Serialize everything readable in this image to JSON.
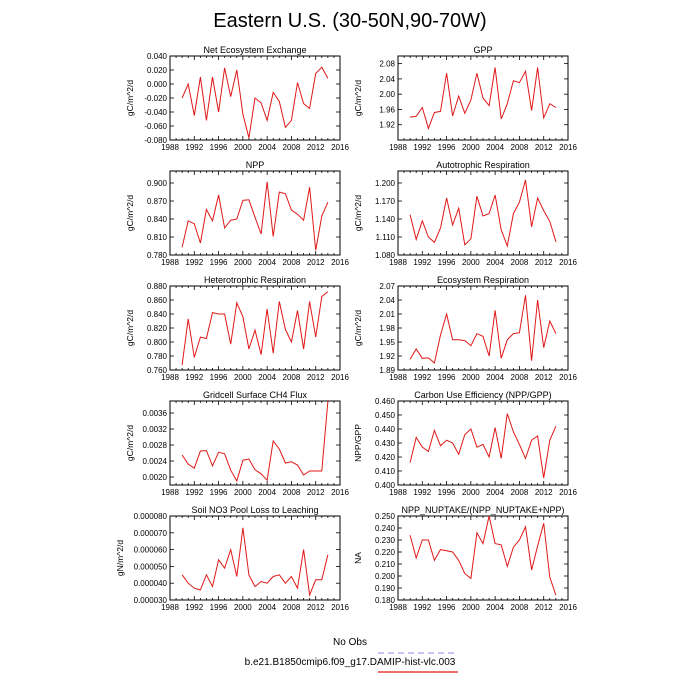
{
  "title": "Eastern U.S. (30-50N,90-70W)",
  "legend": {
    "entries": [
      {
        "label": "No Obs",
        "color": "#8f8fe8",
        "dashed": true
      },
      {
        "label": "b.e21.B1850cmip6.f09_g17.DAMIP-hist-vlc.003",
        "color": "#e01818",
        "dashed": false
      }
    ]
  },
  "chart_data": [
    {
      "type": "line",
      "title": "Net Ecosystem Exchange",
      "ylabel": "gC/m^2/d",
      "xlim": [
        1988,
        2016
      ],
      "ylim": [
        -0.08,
        0.04
      ],
      "xticks": [
        1988,
        1992,
        1996,
        2000,
        2004,
        2008,
        2012,
        2016
      ],
      "yticks": [
        -0.08,
        -0.06,
        -0.04,
        -0.02,
        0.0,
        0.02,
        0.04
      ],
      "ytick_labels": [
        "-0.080",
        "-0.060",
        "-0.040",
        "-0.020",
        "0.000",
        "0.020",
        "0.040"
      ],
      "series": [
        {
          "color": "#e01818",
          "x": [
            1990,
            1991,
            1992,
            1993,
            1994,
            1995,
            1996,
            1997,
            1998,
            1999,
            2000,
            2001,
            2002,
            2003,
            2004,
            2005,
            2006,
            2007,
            2008,
            2009,
            2010,
            2011,
            2012,
            2013,
            2014
          ],
          "y": [
            -0.02,
            0.0,
            -0.045,
            0.01,
            -0.052,
            0.01,
            -0.04,
            0.023,
            -0.018,
            0.02,
            -0.043,
            -0.077,
            -0.02,
            -0.027,
            -0.052,
            -0.012,
            -0.025,
            -0.062,
            -0.052,
            0.002,
            -0.028,
            -0.035,
            0.015,
            0.024,
            0.008
          ]
        }
      ]
    },
    {
      "type": "line",
      "title": "GPP",
      "ylabel": "gC/m^2/d",
      "xlim": [
        1988,
        2016
      ],
      "ylim": [
        1.88,
        2.1
      ],
      "xticks": [
        1988,
        1992,
        1996,
        2000,
        2004,
        2008,
        2012,
        2016
      ],
      "yticks": [
        1.92,
        1.96,
        2.0,
        2.04,
        2.08
      ],
      "ytick_labels": [
        "1.92",
        "1.96",
        "2.00",
        "2.04",
        "2.08"
      ],
      "series": [
        {
          "color": "#e01818",
          "x": [
            1990,
            1991,
            1992,
            1993,
            1994,
            1995,
            1996,
            1997,
            1998,
            1999,
            2000,
            2001,
            2002,
            2003,
            2004,
            2005,
            2006,
            2007,
            2008,
            2009,
            2010,
            2011,
            2012,
            2013,
            2014
          ],
          "y": [
            1.94,
            1.942,
            1.965,
            1.91,
            1.952,
            1.955,
            2.055,
            1.943,
            1.995,
            1.95,
            1.985,
            2.055,
            1.99,
            1.97,
            2.07,
            1.935,
            1.975,
            2.035,
            2.03,
            2.06,
            1.957,
            2.07,
            1.938,
            1.975,
            1.965
          ]
        }
      ]
    },
    {
      "type": "line",
      "title": "NPP",
      "ylabel": "gC/m^2/d",
      "xlim": [
        1988,
        2016
      ],
      "ylim": [
        0.78,
        0.92
      ],
      "xticks": [
        1988,
        1992,
        1996,
        2000,
        2004,
        2008,
        2012,
        2016
      ],
      "yticks": [
        0.78,
        0.81,
        0.84,
        0.87,
        0.9
      ],
      "ytick_labels": [
        "0.780",
        "0.810",
        "0.840",
        "0.870",
        "0.900"
      ],
      "series": [
        {
          "color": "#e01818",
          "x": [
            1990,
            1991,
            1992,
            1993,
            1994,
            1995,
            1996,
            1997,
            1998,
            1999,
            2000,
            2001,
            2002,
            2003,
            2004,
            2005,
            2006,
            2007,
            2008,
            2009,
            2010,
            2011,
            2012,
            2013,
            2014
          ],
          "y": [
            0.793,
            0.837,
            0.832,
            0.8,
            0.856,
            0.837,
            0.88,
            0.825,
            0.838,
            0.84,
            0.871,
            0.872,
            0.843,
            0.815,
            0.902,
            0.811,
            0.885,
            0.882,
            0.855,
            0.848,
            0.838,
            0.893,
            0.788,
            0.845,
            0.868
          ]
        }
      ]
    },
    {
      "type": "line",
      "title": "Autotrophic Respiration",
      "ylabel": "gC/m^2/d",
      "xlim": [
        1988,
        2016
      ],
      "ylim": [
        1.08,
        1.22
      ],
      "xticks": [
        1988,
        1992,
        1996,
        2000,
        2004,
        2008,
        2012,
        2016
      ],
      "yticks": [
        1.08,
        1.11,
        1.14,
        1.17,
        1.2
      ],
      "ytick_labels": [
        "1.080",
        "1.110",
        "1.140",
        "1.170",
        "1.200"
      ],
      "series": [
        {
          "color": "#e01818",
          "x": [
            1990,
            1991,
            1992,
            1993,
            1994,
            1995,
            1996,
            1997,
            1998,
            1999,
            2000,
            2001,
            2002,
            2003,
            2004,
            2005,
            2006,
            2007,
            2008,
            2009,
            2010,
            2011,
            2012,
            2013,
            2014
          ],
          "y": [
            1.147,
            1.106,
            1.137,
            1.11,
            1.101,
            1.125,
            1.175,
            1.13,
            1.158,
            1.097,
            1.107,
            1.178,
            1.145,
            1.149,
            1.18,
            1.122,
            1.095,
            1.149,
            1.168,
            1.205,
            1.127,
            1.175,
            1.154,
            1.136,
            1.102
          ]
        }
      ]
    },
    {
      "type": "line",
      "title": "Heterotrophic Respiration",
      "ylabel": "gC/m^2/d",
      "xlim": [
        1988,
        2016
      ],
      "ylim": [
        0.76,
        0.88
      ],
      "xticks": [
        1988,
        1992,
        1996,
        2000,
        2004,
        2008,
        2012,
        2016
      ],
      "yticks": [
        0.76,
        0.78,
        0.8,
        0.82,
        0.84,
        0.86,
        0.88
      ],
      "ytick_labels": [
        "0.760",
        "0.780",
        "0.800",
        "0.820",
        "0.840",
        "0.860",
        "0.880"
      ],
      "series": [
        {
          "color": "#e01818",
          "x": [
            1990,
            1991,
            1992,
            1993,
            1994,
            1995,
            1996,
            1997,
            1998,
            1999,
            2000,
            2001,
            2002,
            2003,
            2004,
            2005,
            2006,
            2007,
            2008,
            2009,
            2010,
            2011,
            2012,
            2013,
            2014
          ],
          "y": [
            0.767,
            0.833,
            0.778,
            0.807,
            0.805,
            0.842,
            0.84,
            0.84,
            0.797,
            0.856,
            0.836,
            0.79,
            0.817,
            0.782,
            0.847,
            0.784,
            0.858,
            0.818,
            0.8,
            0.845,
            0.79,
            0.858,
            0.807,
            0.865,
            0.872
          ]
        }
      ]
    },
    {
      "type": "line",
      "title": "Ecosystem Respiration",
      "ylabel": "gC/m^2/d",
      "xlim": [
        1988,
        2016
      ],
      "ylim": [
        1.89,
        2.07
      ],
      "xticks": [
        1988,
        1992,
        1996,
        2000,
        2004,
        2008,
        2012,
        2016
      ],
      "yticks": [
        1.89,
        1.92,
        1.95,
        1.98,
        2.01,
        2.04,
        2.07
      ],
      "ytick_labels": [
        "1.89",
        "1.92",
        "1.95",
        "1.98",
        "2.01",
        "2.04",
        "2.07"
      ],
      "series": [
        {
          "color": "#e01818",
          "x": [
            1990,
            1991,
            1992,
            1993,
            1994,
            1995,
            1996,
            1997,
            1998,
            1999,
            2000,
            2001,
            2002,
            2003,
            2004,
            2005,
            2006,
            2007,
            2008,
            2009,
            2010,
            2011,
            2012,
            2013,
            2014
          ],
          "y": [
            1.913,
            1.935,
            1.915,
            1.916,
            1.905,
            1.965,
            2.01,
            1.955,
            1.955,
            1.953,
            1.942,
            1.968,
            1.962,
            1.92,
            2.018,
            1.915,
            1.955,
            1.968,
            1.97,
            2.05,
            1.91,
            2.04,
            1.938,
            1.995,
            1.968
          ]
        }
      ]
    },
    {
      "type": "line",
      "title": "Gridcell Surface CH4 Flux",
      "ylabel": "gC/m^2/d",
      "xlim": [
        1988,
        2016
      ],
      "ylim": [
        0.0018,
        0.0039
      ],
      "xticks": [
        1988,
        1992,
        1996,
        2000,
        2004,
        2008,
        2012,
        2016
      ],
      "yticks": [
        0.002,
        0.0024,
        0.0028,
        0.0032,
        0.0036
      ],
      "ytick_labels": [
        "0.0020",
        "0.0024",
        "0.0028",
        "0.0032",
        "0.0036"
      ],
      "series": [
        {
          "color": "#e01818",
          "x": [
            1990,
            1991,
            1992,
            1993,
            1994,
            1995,
            1996,
            1997,
            1998,
            1999,
            2000,
            2001,
            2002,
            2003,
            2004,
            2005,
            2006,
            2007,
            2008,
            2009,
            2010,
            2011,
            2012,
            2013,
            2014
          ],
          "y": [
            0.00255,
            0.00232,
            0.00222,
            0.00265,
            0.00266,
            0.00228,
            0.00262,
            0.00258,
            0.00217,
            0.0019,
            0.00242,
            0.00245,
            0.00218,
            0.00208,
            0.00192,
            0.0029,
            0.0027,
            0.00235,
            0.00238,
            0.0023,
            0.00205,
            0.00215,
            0.00215,
            0.00215,
            0.00395
          ]
        }
      ]
    },
    {
      "type": "line",
      "title": "Carbon Use Efficiency (NPP/GPP)",
      "ylabel": "NPP/GPP",
      "xlim": [
        1988,
        2016
      ],
      "ylim": [
        0.4,
        0.46
      ],
      "xticks": [
        1988,
        1992,
        1996,
        2000,
        2004,
        2008,
        2012,
        2016
      ],
      "yticks": [
        0.4,
        0.41,
        0.42,
        0.43,
        0.44,
        0.45,
        0.46
      ],
      "ytick_labels": [
        "0.400",
        "0.410",
        "0.420",
        "0.430",
        "0.440",
        "0.450",
        "0.460"
      ],
      "series": [
        {
          "color": "#e01818",
          "x": [
            1990,
            1991,
            1992,
            1993,
            1994,
            1995,
            1996,
            1997,
            1998,
            1999,
            2000,
            2001,
            2002,
            2003,
            2004,
            2005,
            2006,
            2007,
            2008,
            2009,
            2010,
            2011,
            2012,
            2013,
            2014
          ],
          "y": [
            0.416,
            0.434,
            0.427,
            0.424,
            0.439,
            0.428,
            0.432,
            0.43,
            0.422,
            0.436,
            0.44,
            0.427,
            0.429,
            0.42,
            0.441,
            0.419,
            0.451,
            0.438,
            0.429,
            0.419,
            0.432,
            0.435,
            0.405,
            0.432,
            0.442
          ]
        }
      ]
    },
    {
      "type": "line",
      "title": "Soil NO3 Pool Loss to Leaching",
      "ylabel": "gN/m^2/d",
      "xlim": [
        1988,
        2016
      ],
      "ylim": [
        3e-05,
        8e-05
      ],
      "xticks": [
        1988,
        1992,
        1996,
        2000,
        2004,
        2008,
        2012,
        2016
      ],
      "yticks": [
        3e-05,
        4e-05,
        5e-05,
        6e-05,
        7e-05,
        8e-05
      ],
      "ytick_labels": [
        "0.000030",
        "0.000040",
        "0.000050",
        "0.000060",
        "0.000070",
        "0.000080"
      ],
      "series": [
        {
          "color": "#e01818",
          "x": [
            1990,
            1991,
            1992,
            1993,
            1994,
            1995,
            1996,
            1997,
            1998,
            1999,
            2000,
            2001,
            2002,
            2003,
            2004,
            2005,
            2006,
            2007,
            2008,
            2009,
            2010,
            2011,
            2012,
            2013,
            2014
          ],
          "y": [
            4.5e-05,
            4e-05,
            3.7e-05,
            3.6e-05,
            4.5e-05,
            3.8e-05,
            5.4e-05,
            4.9e-05,
            6e-05,
            4.4e-05,
            7.3e-05,
            4.5e-05,
            3.8e-05,
            4.1e-05,
            4e-05,
            4.4e-05,
            4.5e-05,
            4e-05,
            4.4e-05,
            3.7e-05,
            6e-05,
            3.3e-05,
            4.2e-05,
            4.2e-05,
            5.7e-05
          ]
        }
      ]
    },
    {
      "type": "line",
      "title": "NPP_NUPTAKE/(NPP_NUPTAKE+NPP)",
      "ylabel": "NA",
      "xlim": [
        1988,
        2016
      ],
      "ylim": [
        0.18,
        0.25
      ],
      "xticks": [
        1988,
        1992,
        1996,
        2000,
        2004,
        2008,
        2012,
        2016
      ],
      "yticks": [
        0.18,
        0.19,
        0.2,
        0.21,
        0.22,
        0.23,
        0.24,
        0.25
      ],
      "ytick_labels": [
        "0.180",
        "0.190",
        "0.200",
        "0.210",
        "0.220",
        "0.230",
        "0.240",
        "0.250"
      ],
      "series": [
        {
          "color": "#e01818",
          "x": [
            1990,
            1991,
            1992,
            1993,
            1994,
            1995,
            1996,
            1997,
            1998,
            1999,
            2000,
            2001,
            2002,
            2003,
            2004,
            2005,
            2006,
            2007,
            2008,
            2009,
            2010,
            2011,
            2012,
            2013,
            2014
          ],
          "y": [
            0.234,
            0.215,
            0.23,
            0.23,
            0.213,
            0.222,
            0.221,
            0.22,
            0.213,
            0.202,
            0.198,
            0.236,
            0.227,
            0.25,
            0.227,
            0.226,
            0.208,
            0.224,
            0.23,
            0.241,
            0.205,
            0.225,
            0.244,
            0.199,
            0.184
          ]
        }
      ]
    }
  ]
}
